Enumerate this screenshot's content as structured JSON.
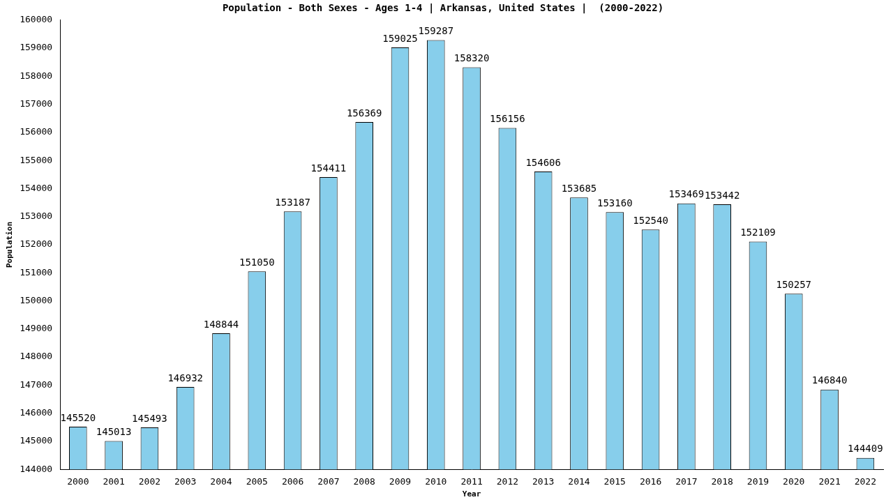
{
  "chart_data": {
    "type": "bar",
    "title": "Population - Both Sexes - Ages 1-4 | Arkansas, United States |  (2000-2022)",
    "xlabel": "Year",
    "ylabel": "Population",
    "categories": [
      "2000",
      "2001",
      "2002",
      "2003",
      "2004",
      "2005",
      "2006",
      "2007",
      "2008",
      "2009",
      "2010",
      "2011",
      "2012",
      "2013",
      "2014",
      "2015",
      "2016",
      "2017",
      "2018",
      "2019",
      "2020",
      "2021",
      "2022"
    ],
    "values": [
      145520,
      145013,
      145493,
      146932,
      148844,
      151050,
      153187,
      154411,
      156369,
      159025,
      159287,
      158320,
      156156,
      154606,
      153685,
      153160,
      152540,
      153469,
      153442,
      152109,
      150257,
      146840,
      144409
    ],
    "color": "#87ceeb",
    "ylim": [
      144000,
      160000
    ],
    "yticks": [
      144000,
      145000,
      146000,
      147000,
      148000,
      149000,
      150000,
      151000,
      152000,
      153000,
      154000,
      155000,
      156000,
      157000,
      158000,
      159000,
      160000
    ],
    "grid": false,
    "data_labels": true
  }
}
